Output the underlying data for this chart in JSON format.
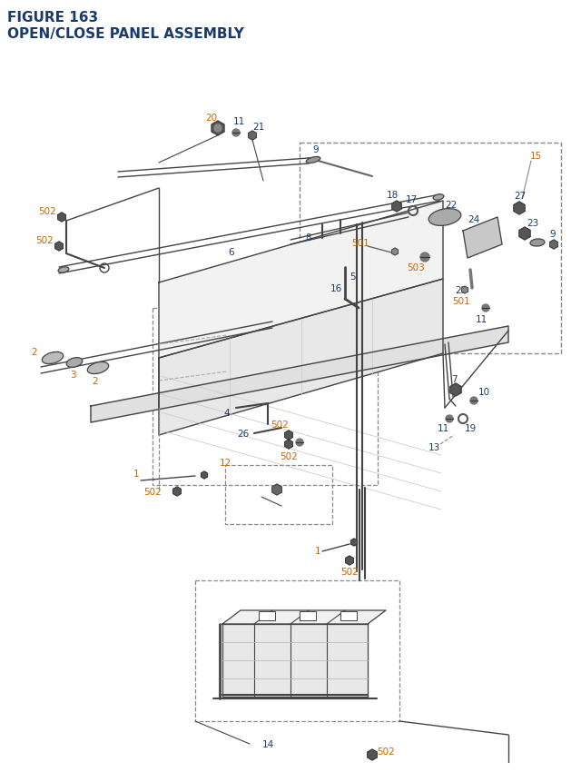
{
  "title_line1": "FIGURE 163",
  "title_line2": "OPEN/CLOSE PANEL ASSEMBLY",
  "title_color": "#1a3a6b",
  "title_fontsize": 11,
  "bg_color": "#ffffff",
  "label_color_orange": "#cc6600",
  "label_color_blue": "#1a3a6b",
  "label_fontsize": 7.5,
  "dashed_box_color": "#888888",
  "line_color": "#444444",
  "part_color": "#444444"
}
